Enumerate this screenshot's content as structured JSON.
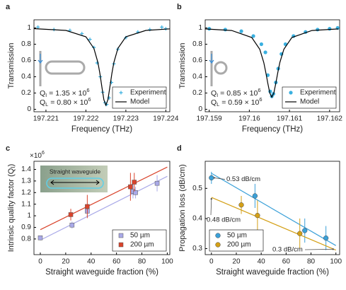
{
  "chart_data": [
    {
      "type": "line",
      "panel_label": "a",
      "xlabel": "Frequency (THz)",
      "ylabel": "Transmission",
      "xlim": [
        197.2207,
        197.2241
      ],
      "xticks": [
        197.221,
        197.222,
        197.223,
        197.224
      ],
      "ylim": [
        -0.03,
        1.1
      ],
      "yticks": [
        0,
        0.2,
        0.4,
        0.6,
        0.8,
        1
      ],
      "legend": "lower right",
      "annotations": [
        [
          "Q",
          "I",
          " = 1.35 × 10",
          "6"
        ],
        [
          "Q",
          "L",
          " = 0.80 × 10",
          "6"
        ]
      ],
      "series": [
        {
          "name": "Experiment",
          "color": "#3ab0e0",
          "marker": "plus",
          "x": [
            197.2208,
            197.2212,
            197.2216,
            197.2219,
            197.2221,
            197.2222,
            197.22228,
            197.22236,
            197.22242,
            197.22248,
            197.22252,
            197.22258,
            197.22264,
            197.2227,
            197.2228,
            197.223,
            197.2233,
            197.2236,
            197.2239,
            197.224
          ],
          "values": [
            1.01,
            0.98,
            0.97,
            0.93,
            0.86,
            0.76,
            0.57,
            0.4,
            0.21,
            0.08,
            0.06,
            0.14,
            0.33,
            0.56,
            0.74,
            0.88,
            0.95,
            0.98,
            1.01,
            0.99
          ]
        },
        {
          "name": "Model",
          "color": "#000000",
          "marker": "line",
          "x": [
            197.2207,
            197.2215,
            197.222,
            197.2222,
            197.2223,
            197.22235,
            197.2224,
            197.22245,
            197.2225,
            197.22255,
            197.2226,
            197.22265,
            197.2227,
            197.2228,
            197.223,
            197.2235,
            197.2241
          ],
          "values": [
            0.991,
            0.97,
            0.891,
            0.749,
            0.575,
            0.439,
            0.274,
            0.118,
            0.05,
            0.118,
            0.274,
            0.439,
            0.575,
            0.749,
            0.891,
            0.97,
            0.989
          ]
        }
      ]
    },
    {
      "type": "line",
      "panel_label": "b",
      "xlabel": "Frequency (THz)",
      "ylabel": "Transmission",
      "xlim": [
        197.1589,
        197.16225
      ],
      "xticks": [
        197.159,
        197.16,
        197.161,
        197.162
      ],
      "ylim": [
        -0.03,
        1.1
      ],
      "yticks": [
        0,
        0.2,
        0.4,
        0.6,
        0.8,
        1
      ],
      "legend": "lower right",
      "annotations": [
        [
          "Q",
          "I",
          " = 0.85 × 10",
          "6"
        ],
        [
          "Q",
          "L",
          " = 0.59 × 10",
          "6"
        ]
      ],
      "series": [
        {
          "name": "Experiment",
          "color": "#3ab0e0",
          "marker": "circle",
          "x": [
            197.159,
            197.1594,
            197.1598,
            197.1601,
            197.1603,
            197.1604,
            197.16046,
            197.16052,
            197.16056,
            197.1606,
            197.16066,
            197.16072,
            197.1608,
            197.1609,
            197.1611,
            197.1614,
            197.1617,
            197.162,
            197.1622
          ],
          "values": [
            0.99,
            0.98,
            0.96,
            0.9,
            0.8,
            0.7,
            0.42,
            0.22,
            0.16,
            0.19,
            0.33,
            0.5,
            0.68,
            0.8,
            0.9,
            0.95,
            0.98,
            0.99,
            1.0
          ]
        },
        {
          "name": "Model",
          "color": "#000000",
          "marker": "line",
          "x": [
            197.1589,
            197.15956,
            197.16006,
            197.16026,
            197.16036,
            197.16041,
            197.16046,
            197.16051,
            197.16056,
            197.16061,
            197.16066,
            197.16071,
            197.16076,
            197.16086,
            197.16106,
            197.16156,
            197.16222
          ],
          "values": [
            0.988,
            0.969,
            0.883,
            0.738,
            0.575,
            0.456,
            0.32,
            0.2,
            0.15,
            0.2,
            0.32,
            0.456,
            0.575,
            0.738,
            0.883,
            0.969,
            0.988
          ]
        }
      ]
    },
    {
      "type": "scatter",
      "panel_label": "c",
      "xlabel": "Straight waveguide fraction (%)",
      "ylabel": "Intrinsic quality factor (Q",
      "ylabel_sub": "I",
      "ylabel_end": ")",
      "y_multiplier": "×10",
      "y_multiplier_exp": "6",
      "inset_label": "Straight waveguide",
      "xlim": [
        -5,
        102
      ],
      "xticks": [
        0,
        20,
        40,
        60,
        80,
        100
      ],
      "ylim": [
        0.665,
        1.47
      ],
      "yticks": [
        0.8,
        0.9,
        1,
        1.1,
        1.2,
        1.3,
        1.4
      ],
      "legend": "lower right",
      "series": [
        {
          "name": "50 µm",
          "color": "#a9a9e8",
          "marker": "square",
          "x": [
            0,
            25,
            37,
            73,
            75,
            92
          ],
          "values": [
            0.81,
            0.92,
            1.04,
            1.21,
            1.2,
            1.28
          ],
          "errors": [
            0.02,
            0.03,
            0.05,
            0.06,
            0.05,
            0.07
          ],
          "fit_x": [
            0,
            100
          ],
          "fit_values": [
            0.79,
            1.34
          ]
        },
        {
          "name": "200 µm",
          "color": "#d9432b",
          "marker": "square",
          "x": [
            24,
            37,
            71,
            74
          ],
          "values": [
            1.01,
            1.08,
            1.25,
            1.29
          ],
          "errors": [
            0.05,
            0.1,
            0.12,
            0.08
          ],
          "fit_x": [
            0,
            100
          ],
          "fit_values": [
            0.88,
            1.42
          ]
        }
      ]
    },
    {
      "type": "scatter",
      "panel_label": "d",
      "xlabel": "Straight waveguide fraction (%)",
      "ylabel": "Propagation loss (dB/cm)",
      "annotations": [
        "0.53 dB/cm",
        "0.48 dB/cm",
        "0.3 dB/cm"
      ],
      "xlim": [
        -5,
        103
      ],
      "xticks": [
        0,
        20,
        40,
        60,
        80,
        100
      ],
      "ylim": [
        0.28,
        0.59
      ],
      "yticks": [
        0.3,
        0.4,
        0.5
      ],
      "legend": "lower left",
      "series": [
        {
          "name": "50 µm",
          "color": "#3aa0d8",
          "marker": "circle",
          "x": [
            0,
            35,
            75,
            92
          ],
          "values": [
            0.535,
            0.475,
            0.36,
            0.335
          ],
          "errors": [
            0.02,
            0.04,
            0.04,
            0.04
          ],
          "fit_x": [
            0,
            100
          ],
          "fit_values": [
            0.55,
            0.31
          ]
        },
        {
          "name": "200 µm",
          "color": "#d4a017",
          "marker": "circle",
          "x": [
            24,
            37,
            71
          ],
          "values": [
            0.445,
            0.41,
            0.35
          ],
          "errors": [
            0.03,
            0.05,
            0.05
          ],
          "fit_x": [
            0,
            100
          ],
          "fit_values": [
            0.47,
            0.295
          ]
        }
      ]
    }
  ]
}
